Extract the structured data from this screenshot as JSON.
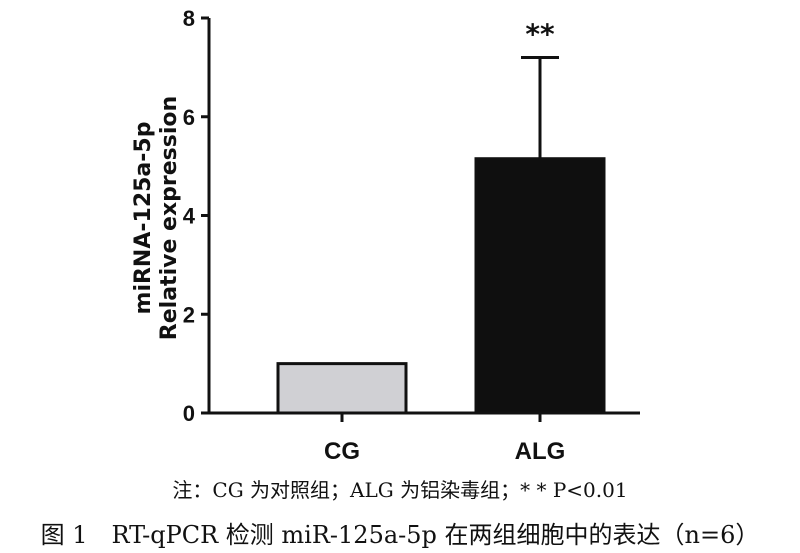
{
  "chart_data": {
    "type": "bar",
    "categories": [
      "CG",
      "ALG"
    ],
    "values": [
      1.0,
      5.15
    ],
    "error_upper": [
      1.0,
      7.2
    ],
    "ylabel_line1": "miRNA-125a-5p",
    "ylabel_line2": "Relative expression",
    "ylim": [
      0,
      8
    ],
    "yticks": [
      "0",
      "2",
      "4",
      "6",
      "8"
    ],
    "significance": [
      "",
      "**"
    ],
    "bar_colors": [
      "#d0d0d4",
      "#0f0f0f"
    ],
    "grid": false
  },
  "note": "注：CG 为对照组；ALG 为铝染毒组；* * P<0.01",
  "caption": "图 1　RT-qPCR 检测 miR-125a-5p 在两组细胞中的表达（n=6）"
}
